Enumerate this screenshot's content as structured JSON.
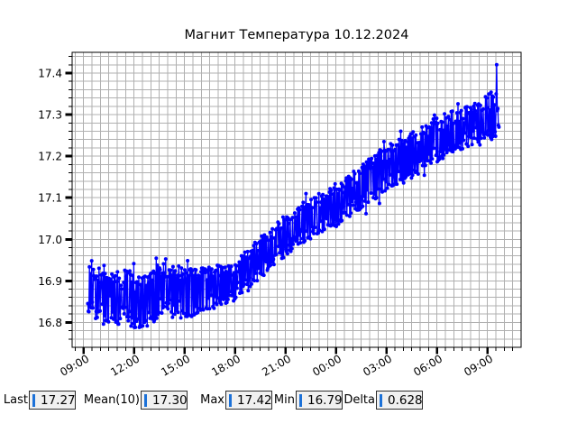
{
  "window": {
    "background": "#ffffff"
  },
  "chart_data": {
    "type": "line",
    "title": "Магнит Температура 10.12.2024",
    "xlabel": "",
    "ylabel": "",
    "legend": "none",
    "x_axis": {
      "unit": "time-of-day",
      "lim_hours": [
        8.32,
        35.0
      ],
      "major_ticks": [
        {
          "hour": 9,
          "label": "09:00"
        },
        {
          "hour": 12,
          "label": "12:00"
        },
        {
          "hour": 15,
          "label": "15:00"
        },
        {
          "hour": 18,
          "label": "18:00"
        },
        {
          "hour": 21,
          "label": "21:00"
        },
        {
          "hour": 24,
          "label": "00:00"
        },
        {
          "hour": 27,
          "label": "03:00"
        },
        {
          "hour": 30,
          "label": "06:00"
        },
        {
          "hour": 33,
          "label": "09:00"
        }
      ],
      "minor_step_hours": 0.5,
      "label_rotation_deg": 30
    },
    "y_axis": {
      "lim": [
        16.74,
        17.45
      ],
      "major_ticks": [
        {
          "value": 17.4,
          "label": "17.4"
        },
        {
          "value": 17.3,
          "label": "17.3"
        },
        {
          "value": 17.2,
          "label": "17.2"
        },
        {
          "value": 17.1,
          "label": "17.1"
        },
        {
          "value": 17.0,
          "label": "17.0"
        },
        {
          "value": 16.9,
          "label": "16.9"
        },
        {
          "value": 16.8,
          "label": "16.8"
        }
      ],
      "minor_step": 0.02
    },
    "grid": {
      "show": true,
      "color": "#b0b0b0"
    },
    "series": [
      {
        "name": "magnet-temperature",
        "color": "#0000ff",
        "marker": "circle",
        "span_hours": [
          9.25,
          33.7
        ],
        "sample_minutes": 2,
        "trend_anchors": [
          [
            9.25,
            16.88
          ],
          [
            10,
            16.865
          ],
          [
            10.5,
            16.85
          ],
          [
            11,
            16.86
          ],
          [
            11.5,
            16.87
          ],
          [
            12,
            16.85
          ],
          [
            12.5,
            16.84
          ],
          [
            13,
            16.86
          ],
          [
            13.5,
            16.875
          ],
          [
            14,
            16.88
          ],
          [
            14.5,
            16.87
          ],
          [
            15,
            16.87
          ],
          [
            16,
            16.875
          ],
          [
            17,
            16.89
          ],
          [
            18,
            16.9
          ],
          [
            19,
            16.94
          ],
          [
            20,
            16.97
          ],
          [
            21,
            17.01
          ],
          [
            22,
            17.04
          ],
          [
            23,
            17.06
          ],
          [
            24,
            17.08
          ],
          [
            25,
            17.11
          ],
          [
            26,
            17.14
          ],
          [
            27,
            17.17
          ],
          [
            28,
            17.19
          ],
          [
            29,
            17.215
          ],
          [
            30,
            17.24
          ],
          [
            31,
            17.26
          ],
          [
            32,
            17.275
          ],
          [
            33,
            17.295
          ],
          [
            33.7,
            17.3
          ]
        ],
        "noise_amplitude_anchors": [
          [
            9.25,
            0.062
          ],
          [
            12.5,
            0.07
          ],
          [
            14,
            0.065
          ],
          [
            16,
            0.055
          ],
          [
            18,
            0.05
          ],
          [
            20,
            0.05
          ],
          [
            22,
            0.05
          ],
          [
            24,
            0.05
          ],
          [
            26,
            0.055
          ],
          [
            28,
            0.055
          ],
          [
            30,
            0.055
          ],
          [
            32,
            0.05
          ],
          [
            33.7,
            0.06
          ]
        ],
        "noise_seed": 11,
        "extremes": {
          "min_hour": 12.4,
          "min": 16.79,
          "max_hour": 33.55,
          "max": 17.42,
          "last": 17.27
        }
      }
    ]
  },
  "stats": {
    "items": [
      {
        "label": "Last",
        "value": "17.27"
      },
      {
        "label": "Mean(10)",
        "value": "17.30"
      },
      {
        "label": "Max",
        "value": "17.42"
      },
      {
        "label": "Min",
        "value": "16.79"
      },
      {
        "label": "Delta",
        "value": "0.628"
      }
    ],
    "cursor_color": "#1c71d8",
    "box_background": "#f0f0f0"
  }
}
